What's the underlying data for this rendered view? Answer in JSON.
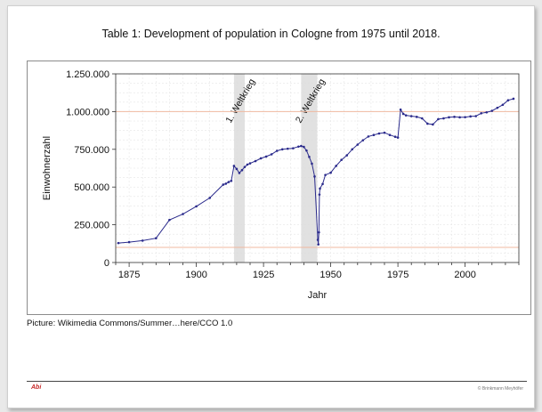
{
  "title": "Table 1: Development of population in Cologne from 1975 until 2018.",
  "caption": "Picture: Wikimedia Commons/Summer…here/CCO 1.0",
  "footer": {
    "logo": "Abi",
    "copyright": "© Brinkmann Meyhöfer"
  },
  "chart_data": {
    "type": "line",
    "xlabel": "Jahr",
    "ylabel": "Einwohnerzahl",
    "xlim": [
      1870,
      2020
    ],
    "ylim": [
      0,
      1250000
    ],
    "x_ticks": [
      1875,
      1900,
      1925,
      1950,
      1975,
      2000
    ],
    "y_ticks": [
      0,
      250000,
      500000,
      750000,
      1000000,
      1250000
    ],
    "y_tick_labels": [
      "0",
      "250.000",
      "500.000",
      "750.000",
      "1.000.000",
      "1.250.000"
    ],
    "grid": true,
    "line_color": "#2b2b8c",
    "reference_lines": [
      {
        "y": 1000000,
        "color": "#f0b8a0"
      },
      {
        "y": 100000,
        "color": "#f0b8a0"
      }
    ],
    "bands": [
      {
        "label": "1. Weltkrieg",
        "from": 1914,
        "to": 1918
      },
      {
        "label": "2. Weltkrieg",
        "from": 1939,
        "to": 1945
      }
    ],
    "series": [
      {
        "x": [
          1871,
          1875,
          1880,
          1885,
          1890,
          1895,
          1900,
          1905,
          1910,
          1911,
          1912,
          1913,
          1914,
          1915,
          1916,
          1917,
          1918,
          1919,
          1920,
          1922,
          1924,
          1926,
          1928,
          1930,
          1932,
          1934,
          1936,
          1938,
          1939,
          1940,
          1941,
          1942,
          1943,
          1944,
          1945.2,
          1945.4,
          1945.6,
          1945.8,
          1946,
          1947,
          1948,
          1950,
          1952,
          1954,
          1956,
          1958,
          1960,
          1962,
          1964,
          1966,
          1968,
          1970,
          1972,
          1974,
          1975,
          1976,
          1977,
          1978,
          1980,
          1982,
          1984,
          1986,
          1988,
          1990,
          1992,
          1994,
          1996,
          1998,
          2000,
          2002,
          2004,
          2006,
          2008,
          2010,
          2012,
          2014,
          2016,
          2018
        ],
        "values": [
          129000,
          135000,
          145000,
          161000,
          282000,
          321000,
          372000,
          428000,
          516000,
          522000,
          533000,
          541000,
          640000,
          620000,
          593000,
          612000,
          633000,
          649000,
          657000,
          672000,
          690000,
          702000,
          717000,
          740000,
          750000,
          754000,
          757000,
          768000,
          772000,
          766000,
          742000,
          700000,
          655000,
          570000,
          150000,
          120000,
          200000,
          450000,
          490000,
          520000,
          580000,
          595000,
          640000,
          680000,
          710000,
          750000,
          781000,
          810000,
          835000,
          845000,
          855000,
          860000,
          845000,
          833000,
          828000,
          1013000,
          985000,
          975000,
          970000,
          965000,
          955000,
          920000,
          915000,
          950000,
          955000,
          962000,
          965000,
          962000,
          963000,
          968000,
          970000,
          989000,
          995000,
          1005000,
          1025000,
          1045000,
          1075000,
          1085000
        ]
      }
    ]
  }
}
